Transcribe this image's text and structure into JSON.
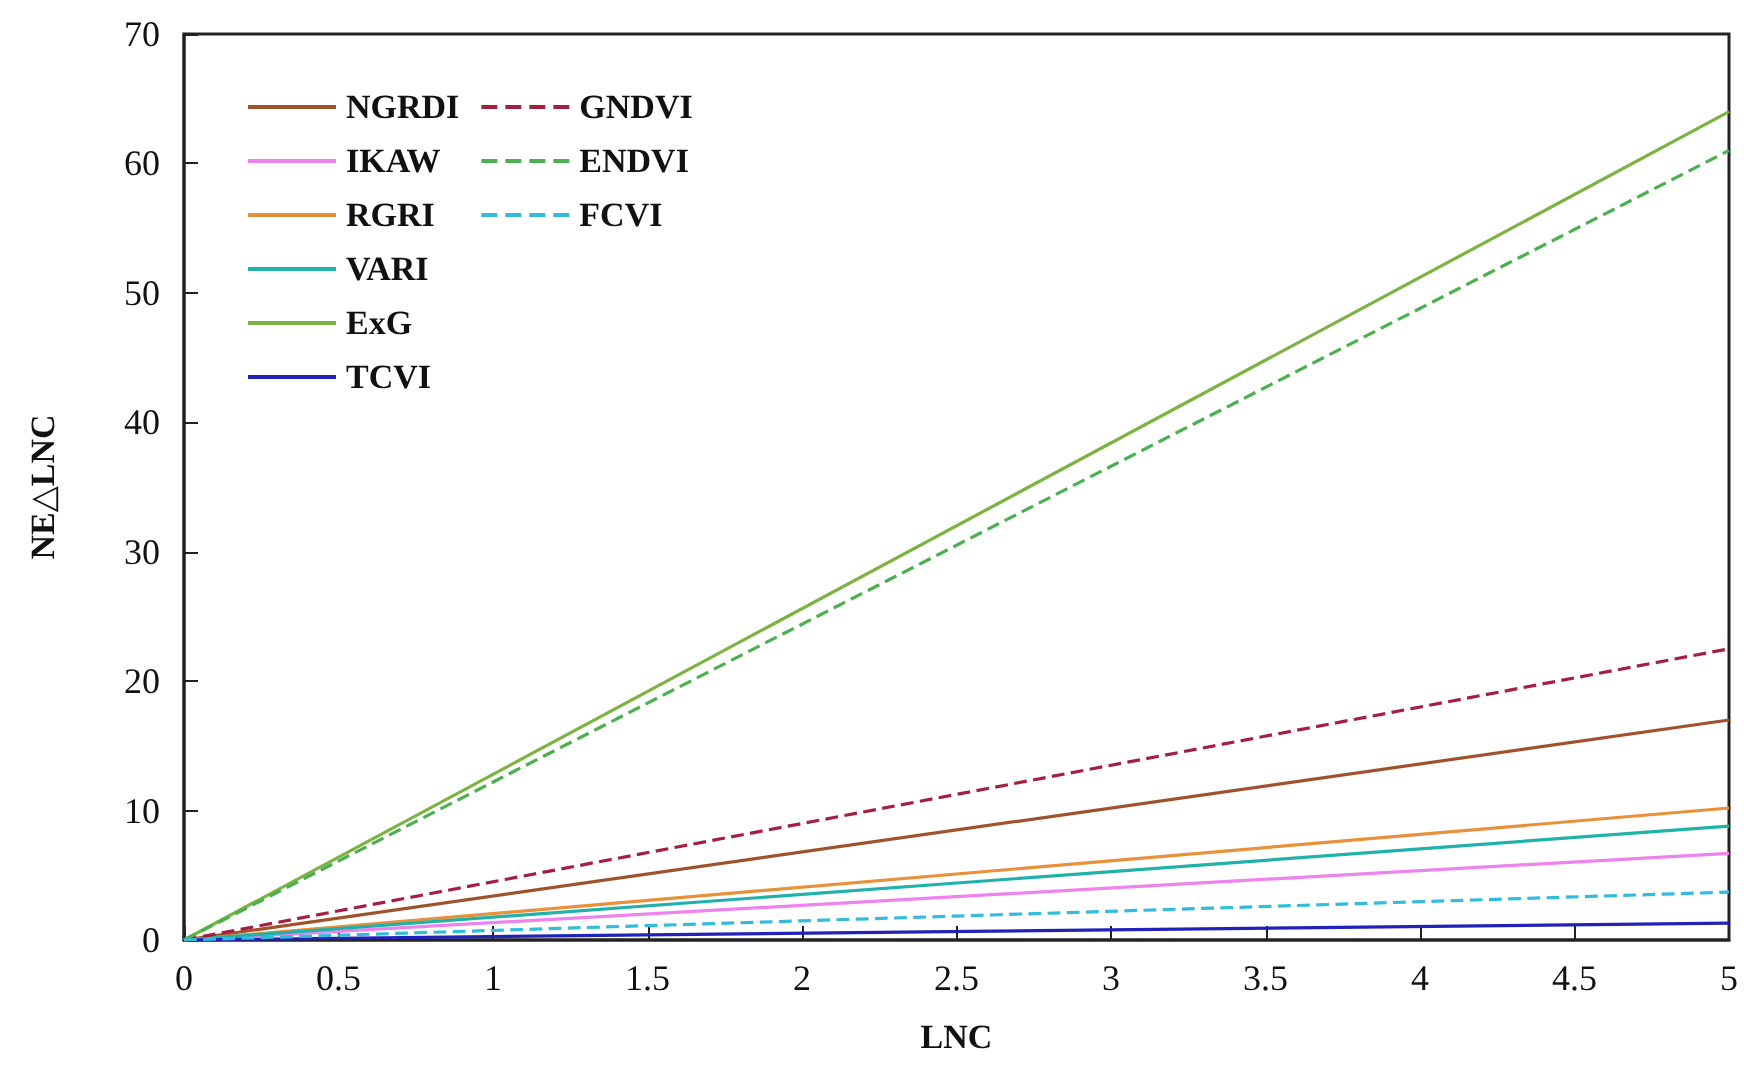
{
  "chart_data": {
    "type": "line",
    "xlabel": "LNC",
    "ylabel": "NE△LNC",
    "x": [
      0,
      5
    ],
    "xlim": [
      0,
      5
    ],
    "xticks": [
      0,
      0.5,
      1,
      1.5,
      2,
      2.5,
      3,
      3.5,
      4,
      4.5,
      5
    ],
    "ylim": [
      0,
      70
    ],
    "yticks": [
      0,
      10,
      20,
      30,
      40,
      50,
      60,
      70
    ],
    "grid": false,
    "legend": "top left",
    "marker": "none",
    "series": [
      {
        "name": "NGRDI",
        "color": "#a0522d",
        "values": [
          0,
          17.0
        ]
      },
      {
        "name": "IKAW",
        "color": "#ee82ee",
        "values": [
          0,
          6.7
        ]
      },
      {
        "name": "RGRI",
        "color": "#e8913a",
        "values": [
          0,
          10.2
        ]
      },
      {
        "name": "VARI",
        "color": "#20b2aa",
        "values": [
          0,
          8.8
        ]
      },
      {
        "name": "ExG",
        "color": "#7cb342",
        "values": [
          0,
          64
        ]
      },
      {
        "name": "TCVI",
        "color": "#2222bb",
        "values": [
          0,
          1.3
        ]
      },
      {
        "name": "GNDVI",
        "color": "#a52040",
        "values": [
          0,
          22.5
        ],
        "line_style": "dashed"
      },
      {
        "name": "ENDVI",
        "color": "#4caf50",
        "values": [
          0,
          61
        ],
        "line_style": "dashed"
      },
      {
        "name": "FCVI",
        "color": "#33bbdd",
        "values": [
          0,
          3.7
        ],
        "line_style": "dashed"
      }
    ]
  }
}
